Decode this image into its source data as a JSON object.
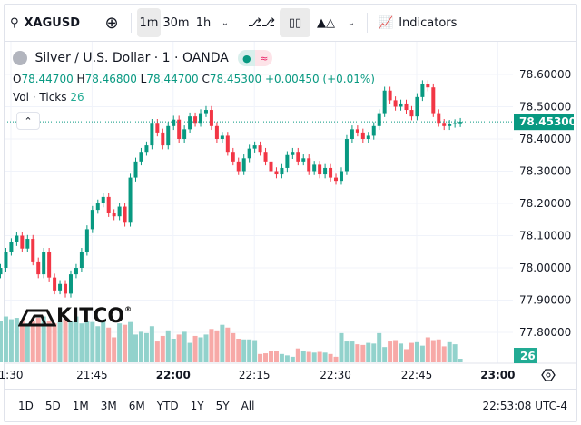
{
  "toolbar": {
    "symbol": "XAGUSD",
    "intervals": [
      "1m",
      "30m",
      "1h"
    ],
    "active_interval": "1m",
    "indicators_label": "Indicators"
  },
  "legend": {
    "title": "Silver / U.S. Dollar · 1 · OANDA",
    "open_label": "O",
    "open": "78.44700",
    "high_label": "H",
    "high": "78.46800",
    "low_label": "L",
    "low": "78.44700",
    "close_label": "C",
    "close": "78.45300",
    "change": "+0.00450 (+0.01%)",
    "vol_label": "Vol · Ticks",
    "vol_value": "26"
  },
  "watermark": "KITCO",
  "bottom": {
    "ranges": [
      "1D",
      "5D",
      "1M",
      "3M",
      "6M",
      "YTD",
      "1Y",
      "5Y",
      "All"
    ],
    "clock": "22:53:08 UTC-4"
  },
  "colors": {
    "up": "#089981",
    "down": "#f23645",
    "vol_up": "#92d2cc",
    "vol_down": "#f7a9a7"
  },
  "chart_data": {
    "type": "candlestick",
    "start_time": "21:28",
    "interval_minutes": 1,
    "closes": [
      78.0,
      78.05,
      78.08,
      78.1,
      78.06,
      78.09,
      78.02,
      77.98,
      78.05,
      77.97,
      77.93,
      77.95,
      77.92,
      77.98,
      78.0,
      78.05,
      78.12,
      78.18,
      78.2,
      78.22,
      78.17,
      78.16,
      78.19,
      78.14,
      78.28,
      78.33,
      78.36,
      78.38,
      78.45,
      78.42,
      78.38,
      78.44,
      78.46,
      78.4,
      78.43,
      78.47,
      78.45,
      78.48,
      78.49,
      78.44,
      78.4,
      78.41,
      78.36,
      78.33,
      78.3,
      78.34,
      78.37,
      78.38,
      78.36,
      78.33,
      78.3,
      78.29,
      78.31,
      78.35,
      78.36,
      78.33,
      78.34,
      78.3,
      78.32,
      78.29,
      78.31,
      78.28,
      78.27,
      78.3,
      78.4,
      78.43,
      78.42,
      78.4,
      78.41,
      78.44,
      78.48,
      78.55,
      78.52,
      78.5,
      78.51,
      78.49,
      78.47,
      78.53,
      78.57,
      78.56,
      78.48,
      78.45,
      78.44,
      78.447,
      78.449,
      78.453
    ],
    "volumes": [
      300,
      330,
      310,
      320,
      300,
      280,
      300,
      320,
      330,
      300,
      280,
      290,
      310,
      300,
      330,
      280,
      300,
      290,
      260,
      300,
      250,
      180,
      280,
      270,
      290,
      200,
      220,
      210,
      260,
      150,
      190,
      230,
      170,
      200,
      220,
      140,
      190,
      180,
      200,
      240,
      230,
      270,
      250,
      210,
      170,
      165,
      165,
      160,
      60,
      65,
      85,
      80,
      60,
      50,
      40,
      100,
      80,
      75,
      70,
      75,
      70,
      60,
      40,
      210,
      150,
      150,
      130,
      125,
      140,
      135,
      210,
      110,
      150,
      160,
      135,
      95,
      140,
      145,
      120,
      180,
      160,
      165,
      115,
      145,
      130,
      26
    ],
    "price_ticks": [
      "78.60000",
      "78.50000",
      "78.40000",
      "78.30000",
      "78.20000",
      "78.10000",
      "78.00000",
      "77.90000",
      "77.80000"
    ],
    "time_ticks": [
      "1:30",
      "21:45",
      "22:00",
      "22:15",
      "22:30",
      "22:45",
      "23:00"
    ],
    "last_price": "78.45300",
    "last_volume": "26"
  }
}
